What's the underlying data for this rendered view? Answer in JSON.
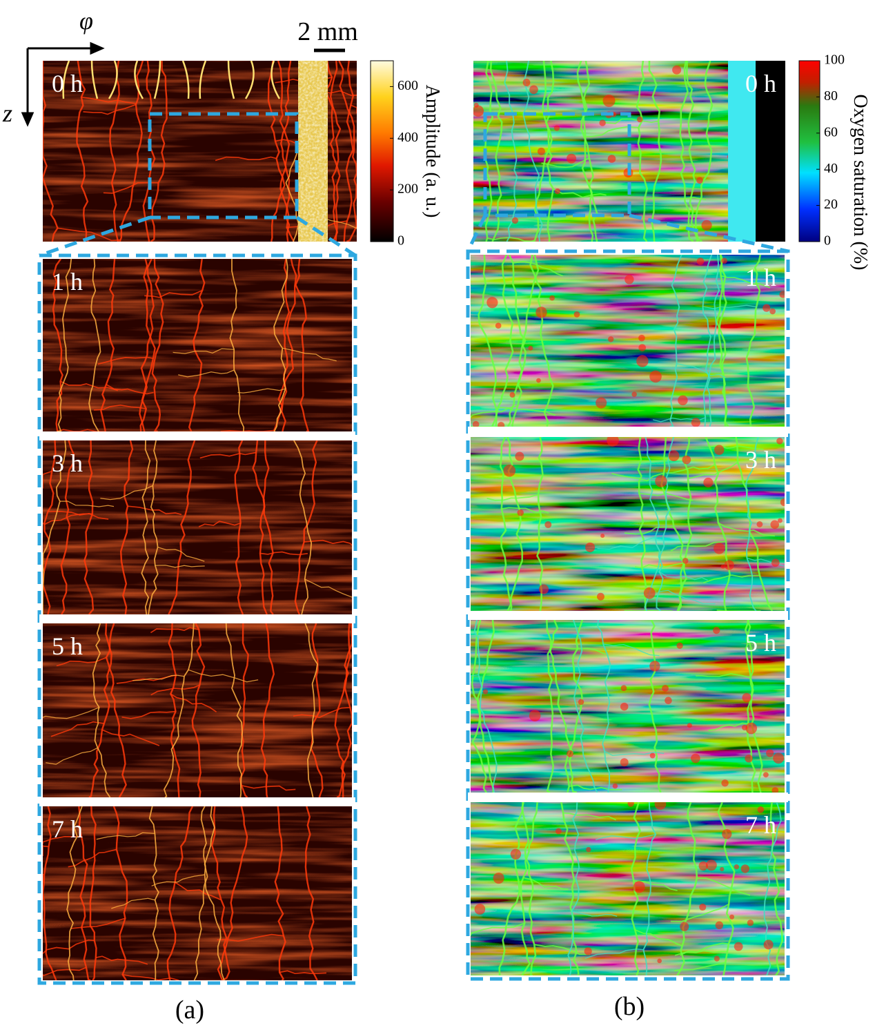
{
  "axes": {
    "phi": "φ",
    "z": "z"
  },
  "scale_bar": "2 mm",
  "panel_a": {
    "label": "(a)",
    "times": [
      "0 h",
      "1 h",
      "3 h",
      "5 h",
      "7 h"
    ],
    "colorbar": {
      "label": "Amplitude (a. u.)",
      "lim": [
        0,
        700
      ],
      "ticks": [
        0,
        200,
        400,
        600
      ]
    }
  },
  "panel_b": {
    "label": "(b)",
    "times": [
      "0 h",
      "1 h",
      "3 h",
      "5 h",
      "7 h"
    ],
    "colorbar": {
      "label": "Oxygen saturation (%)",
      "lim": [
        0,
        100
      ],
      "ticks": [
        0,
        20,
        40,
        60,
        80,
        100
      ]
    }
  }
}
